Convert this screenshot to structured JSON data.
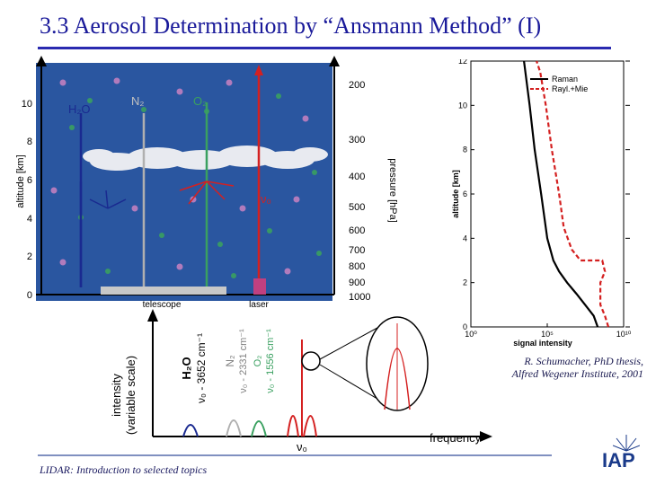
{
  "slide": {
    "title": "3.3 Aerosol Determination by “Ansmann Method” (I)",
    "footer": "LIDAR: Introduction to selected topics",
    "credit_line1": "R. Schumacher, PhD thesis,",
    "credit_line2": "Alfred Wegener Institute, 2001",
    "logo": "IAP",
    "colors": {
      "title": "#1a1a9a",
      "rule": "#2a2ab0",
      "diagram_bg": "#2a56a0",
      "raman": "#000000",
      "rayl_mie": "#d42020"
    }
  },
  "scene": {
    "altitude_label": "altitude [km]",
    "pressure_label": "pressure [hPa]",
    "altitude_ticks": [
      "0",
      "2",
      "4",
      "6",
      "8",
      "10"
    ],
    "pressure_ticks": [
      "200",
      "300",
      "400",
      "500",
      "600",
      "700",
      "800",
      "900",
      "1000"
    ],
    "h2o": "H₂O",
    "n2": "N₂",
    "o2": "O₂",
    "nu0": "ν₀",
    "telescope": "telescope",
    "laser": "laser"
  },
  "spectrum": {
    "ylabel_line1": "intensity",
    "ylabel_line2": "(variable scale)",
    "xlabel": "frequency",
    "h2o_name": "H₂O",
    "h2o_shift": "ν₀ - 3652 cm⁻¹",
    "n2_name": "N₂",
    "n2_shift": "ν₀ - 2331 cm⁻¹",
    "o2_name": "O₂",
    "o2_shift": "ν₀ - 1556 cm⁻¹",
    "nu0": "ν₀"
  },
  "chart_data": {
    "type": "line",
    "xlabel": "signal intensity",
    "ylabel": "altitude [km]",
    "xscale": "log",
    "xlim": [
      1,
      10000000000
    ],
    "ylim": [
      0,
      12
    ],
    "x_ticks": [
      "10⁰",
      "10⁵",
      "10¹⁰"
    ],
    "y_ticks": [
      "0",
      "2",
      "4",
      "6",
      "8",
      "10",
      "12"
    ],
    "legend_position": "top-right",
    "series": [
      {
        "name": "Raman",
        "style": "solid",
        "color": "#000000",
        "x": [
          200000000,
          110000000,
          30000000,
          8000000,
          2000000,
          600000,
          250000,
          100000,
          40000,
          15000,
          7000,
          3000
        ],
        "y": [
          0.0,
          0.5,
          1.0,
          1.5,
          2.0,
          2.5,
          3.0,
          4.0,
          6.0,
          8.0,
          10.0,
          12.0
        ]
      },
      {
        "name": "Rayl.+Mie",
        "style": "dashed",
        "color": "#d42020",
        "x": [
          1000000000,
          600000000,
          300000000,
          300000000,
          600000000,
          400000000,
          15000000,
          4000000,
          1200000,
          600000,
          200000,
          80000,
          35000,
          20000
        ],
        "y": [
          0.0,
          0.5,
          1.0,
          2.0,
          2.5,
          3.0,
          3.0,
          3.5,
          4.5,
          6.0,
          8.0,
          10.0,
          11.5,
          12.0
        ]
      }
    ]
  }
}
